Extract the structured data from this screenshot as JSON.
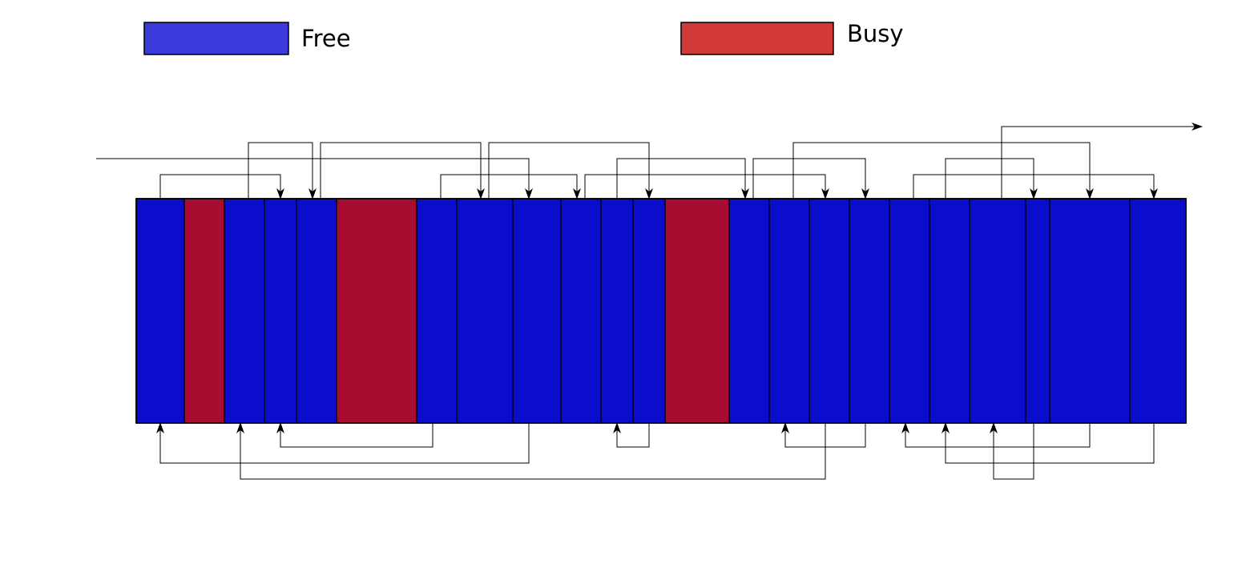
{
  "legend": {
    "free": {
      "label": "Free",
      "color": "#3b3bdc"
    },
    "busy": {
      "label": "Busy",
      "color": "#d23a3a"
    }
  },
  "colors": {
    "free_block": "#0c0ccc",
    "busy_block": "#a80c30",
    "line": "#000000"
  },
  "blocks": [
    {
      "type": "free"
    },
    {
      "type": "busy"
    },
    {
      "type": "free"
    },
    {
      "type": "free"
    },
    {
      "type": "free"
    },
    {
      "type": "busy"
    },
    {
      "type": "free"
    },
    {
      "type": "free"
    },
    {
      "type": "free"
    },
    {
      "type": "free"
    },
    {
      "type": "free"
    },
    {
      "type": "free"
    },
    {
      "type": "busy"
    },
    {
      "type": "free"
    },
    {
      "type": "free"
    },
    {
      "type": "free"
    },
    {
      "type": "free"
    },
    {
      "type": "free"
    },
    {
      "type": "free"
    },
    {
      "type": "free"
    },
    {
      "type": "free"
    },
    {
      "type": "free"
    },
    {
      "type": "free"
    }
  ]
}
